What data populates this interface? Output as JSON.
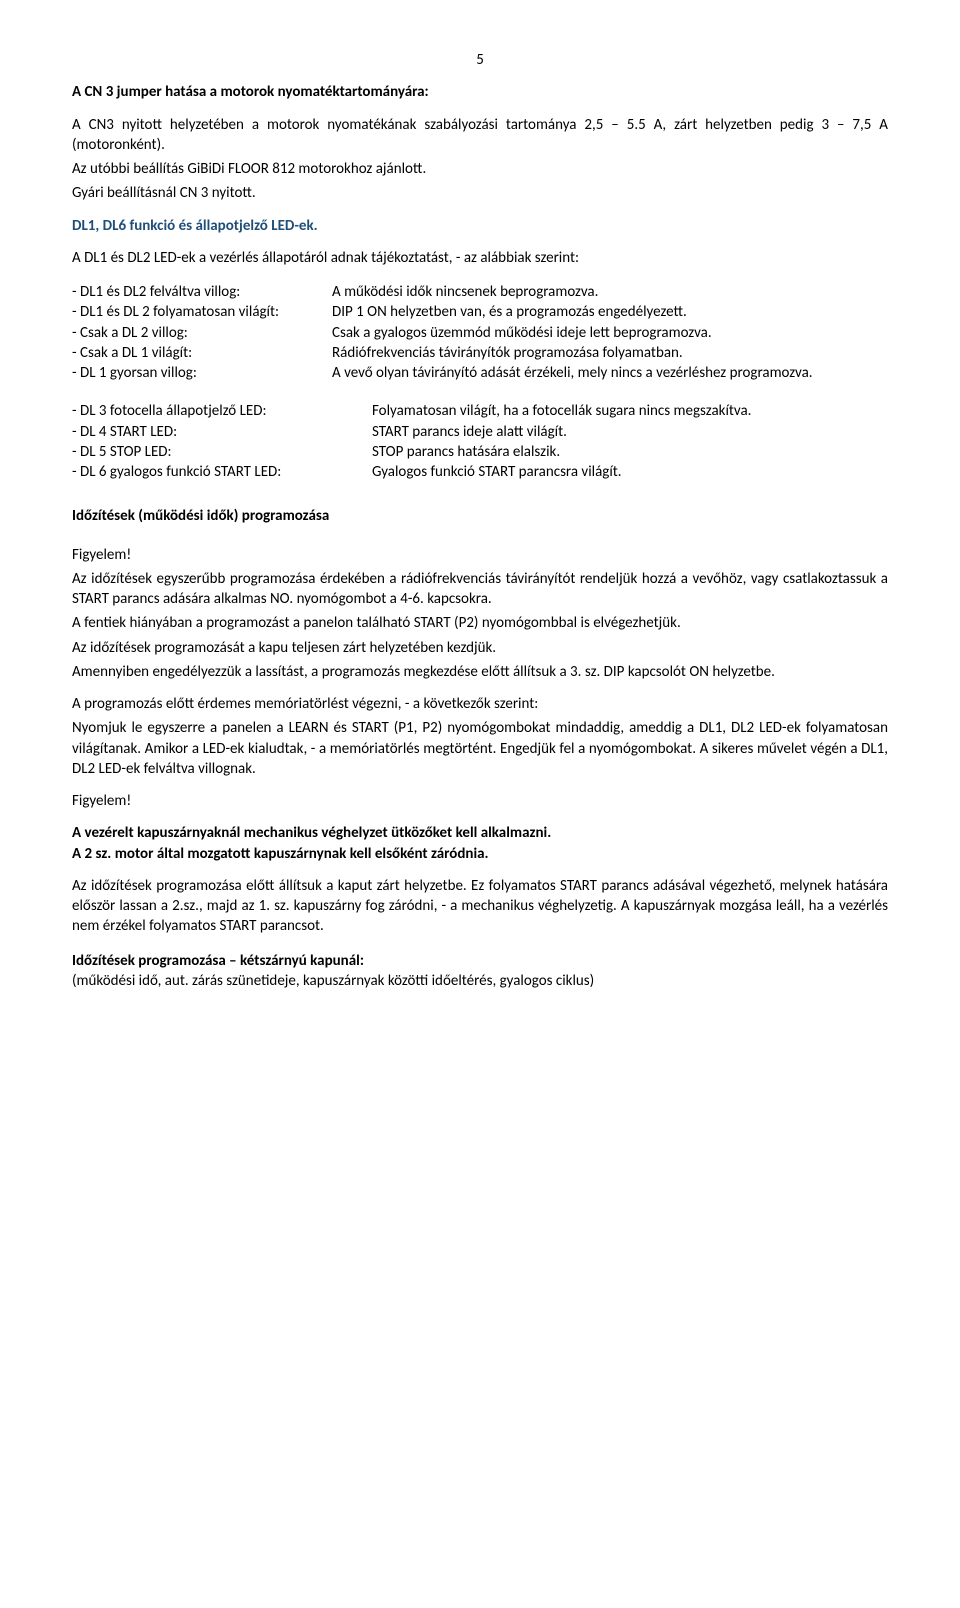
{
  "pageNumber": "5",
  "sectionA": {
    "heading": "A CN 3 jumper hatása a motorok nyomatéktartományára:",
    "p1": "A CN3 nyitott helyzetében a motorok nyomatékának szabályozási tartománya 2,5 – 5.5 A, zárt helyzetben pedig 3 – 7,5 A (motoronként).",
    "p2": "Az utóbbi beállítás GiBiDi FLOOR 812 motorokhoz ajánlott.",
    "p3": "Gyári beállításnál CN 3 nyitott."
  },
  "sectionB": {
    "heading": "DL1, DL6 funkció és állapotjelző LED-ek.",
    "intro": "A DL1 és DL2 LED-ek a vezérlés állapotáról adnak tájékoztatást, - az alábbiak szerint:",
    "defs1": [
      {
        "label": "- DL1 és DL2 felváltva villog:",
        "value": "A működési idők nincsenek beprogramozva."
      },
      {
        "label": "- DL1 és DL 2 folyamatosan világít:",
        "value": "DIP 1 ON helyzetben van, és a programozás engedélyezett."
      },
      {
        "label": "- Csak a DL 2 villog:",
        "value": "Csak a gyalogos üzemmód működési ideje lett beprogramozva."
      },
      {
        "label": "- Csak a DL 1 világít:",
        "value": "Rádiófrekvenciás távirányítók programozása folyamatban."
      },
      {
        "label": "- DL 1 gyorsan villog:",
        "value": "A vevő olyan távirányító adását érzékeli, mely nincs a vezérléshez programozva."
      }
    ],
    "defs2": [
      {
        "label": "- DL 3 fotocella állapotjelző LED:",
        "value": "Folyamatosan világít, ha a fotocellák sugara nincs megszakítva."
      },
      {
        "label": "- DL 4 START LED:",
        "value": "START parancs ideje alatt világít."
      },
      {
        "label": "- DL 5 STOP LED:",
        "value": "STOP parancs hatására elalszik."
      },
      {
        "label": "- DL 6 gyalogos funkció START LED:",
        "value": "Gyalogos funkció START parancsra világít."
      }
    ]
  },
  "sectionC": {
    "heading": "Időzítések (működési idők) programozása",
    "attention1": "Figyelem!",
    "p1": "Az időzítések egyszerűbb programozása érdekében a rádiófrekvenciás távirányítót rendeljük hozzá a vevőhöz, vagy csatlakoztassuk a START parancs adására alkalmas NO. nyomógombot a 4-6. kapcsokra.",
    "p2": "A fentiek hiányában a programozást a panelon található START (P2) nyomógombbal is elvégezhetjük.",
    "p3": "Az időzítések programozását a kapu teljesen zárt helyzetében kezdjük.",
    "p4": "Amennyiben engedélyezzük a lassítást, a programozás megkezdése előtt állítsuk a 3. sz. DIP kapcsolót ON helyzetbe.",
    "p5": "A programozás előtt érdemes memóriatörlést végezni, - a következők szerint:",
    "p6": "Nyomjuk le egyszerre a panelen a LEARN és START (P1, P2) nyomógombokat mindaddig, ameddig a DL1, DL2 LED-ek folyamatosan világítanak. Amikor a LED-ek kialudtak, - a memóriatörlés megtörtént. Engedjük fel a nyomógombokat. A sikeres művelet végén a DL1, DL2 LED-ek felváltva villognak.",
    "attention2": "Figyelem!",
    "bold1": "A vezérelt kapuszárnyaknál mechanikus véghelyzet ütközőket kell alkalmazni.",
    "bold2": "A 2 sz. motor által mozgatott kapuszárnynak kell elsőként záródnia.",
    "p7": "Az időzítések programozása előtt állítsuk a kaput zárt helyzetbe. Ez folyamatos START parancs adásával végezhető, melynek hatására először lassan a 2.sz., majd az 1. sz. kapuszárny fog záródni, - a mechanikus véghelyzetig. A kapuszárnyak mozgása leáll, ha a vezérlés nem érzékel folyamatos START parancsot."
  },
  "sectionD": {
    "heading": "Időzítések programozása – kétszárnyú kapunál:",
    "sub": "(működési idő, aut. zárás szünetideje, kapuszárnyak közötti időeltérés, gyalogos ciklus)"
  }
}
